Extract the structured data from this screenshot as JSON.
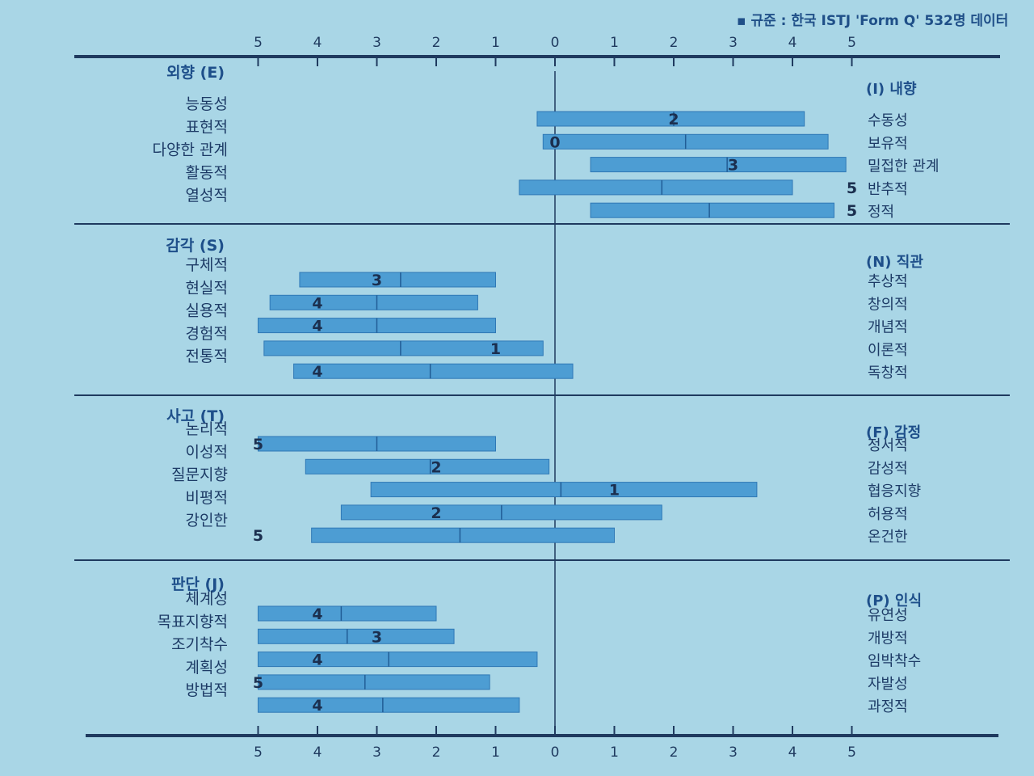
{
  "norm_note": "▪ 규준 : 한국 ISTJ 'Form Q' 532명 데이터",
  "chart_data": {
    "type": "bar",
    "axis_ticks_top": [
      "5",
      "4",
      "3",
      "2",
      "1",
      "0",
      "1",
      "2",
      "3",
      "4",
      "5"
    ],
    "axis_ticks_bottom": [
      "5",
      "4",
      "3",
      "2",
      "1",
      "0",
      "1",
      "2",
      "3",
      "4",
      "5"
    ],
    "xlim": [
      -5,
      5
    ],
    "scales": [
      {
        "left_header": "외향 (E)",
        "right_header": "(I) 내향",
        "facets": [
          {
            "left": "능동성",
            "right": "수동성",
            "range": [
              -0.3,
              4.2
            ],
            "median": 2.0,
            "score_label": "2",
            "score_pos": 2.0
          },
          {
            "left": "표현적",
            "right": "보유적",
            "range": [
              -0.2,
              4.6
            ],
            "median": 2.2,
            "score_label": "0",
            "score_pos": 0.0
          },
          {
            "left": "다양한 관계",
            "right": "밀접한 관계",
            "range": [
              0.6,
              4.9
            ],
            "median": 2.9,
            "score_label": "3",
            "score_pos": 3.0
          },
          {
            "left": "활동적",
            "right": "반추적",
            "range": [
              -0.6,
              4.0
            ],
            "median": 1.8,
            "score_label": "5",
            "score_pos": 5.0
          },
          {
            "left": "열성적",
            "right": "정적",
            "range": [
              0.6,
              4.7
            ],
            "median": 2.6,
            "score_label": "5",
            "score_pos": 5.0
          }
        ]
      },
      {
        "left_header": "감각 (S)",
        "right_header": "(N) 직관",
        "facets": [
          {
            "left": "구체적",
            "right": "추상적",
            "range": [
              -4.3,
              -1.0
            ],
            "median": -2.6,
            "score_label": "3",
            "score_pos": -3.0
          },
          {
            "left": "현실적",
            "right": "창의적",
            "range": [
              -4.8,
              -1.3
            ],
            "median": -3.0,
            "score_label": "4",
            "score_pos": -4.0
          },
          {
            "left": "실용적",
            "right": "개념적",
            "range": [
              -5.0,
              -1.0
            ],
            "median": -3.0,
            "score_label": "4",
            "score_pos": -4.0
          },
          {
            "left": "경험적",
            "right": "이론적",
            "range": [
              -4.9,
              -0.2
            ],
            "median": -2.6,
            "score_label": "1",
            "score_pos": -1.0
          },
          {
            "left": "전통적",
            "right": "독창적",
            "range": [
              -4.4,
              0.3
            ],
            "median": -2.1,
            "score_label": "4",
            "score_pos": -4.0
          }
        ]
      },
      {
        "left_header": "사고 (T)",
        "right_header": "(F) 감정",
        "facets": [
          {
            "left": "논리적",
            "right": "정서적",
            "range": [
              -5.0,
              -1.0
            ],
            "median": -3.0,
            "score_label": "5",
            "score_pos": -5.0
          },
          {
            "left": "이성적",
            "right": "감성적",
            "range": [
              -4.2,
              -0.1
            ],
            "median": -2.1,
            "score_label": "2",
            "score_pos": -2.0
          },
          {
            "left": "질문지향",
            "right": "협응지향",
            "range": [
              -3.1,
              3.4
            ],
            "median": 0.1,
            "score_label": "1",
            "score_pos": 1.0
          },
          {
            "left": "비평적",
            "right": "허용적",
            "range": [
              -3.6,
              1.8
            ],
            "median": -0.9,
            "score_label": "2",
            "score_pos": -2.0
          },
          {
            "left": "강인한",
            "right": "온건한",
            "range": [
              -4.1,
              1.0
            ],
            "median": -1.6,
            "score_label": "5",
            "score_pos": -5.0
          }
        ]
      },
      {
        "left_header": "판단 (J)",
        "right_header": "(P) 인식",
        "facets": [
          {
            "left": "체계성",
            "right": "유연성",
            "range": [
              -5.0,
              -2.0
            ],
            "median": -3.6,
            "score_label": "4",
            "score_pos": -4.0
          },
          {
            "left": "목표지향적",
            "right": "개방적",
            "range": [
              -5.0,
              -1.7
            ],
            "median": -3.5,
            "score_label": "3",
            "score_pos": -3.0
          },
          {
            "left": "조기착수",
            "right": "임박착수",
            "range": [
              -5.0,
              -0.3
            ],
            "median": -2.8,
            "score_label": "4",
            "score_pos": -4.0
          },
          {
            "left": "계획성",
            "right": "자발성",
            "range": [
              -5.0,
              -1.1
            ],
            "median": -3.2,
            "score_label": "5",
            "score_pos": -5.0
          },
          {
            "left": "방법적",
            "right": "과정적",
            "range": [
              -5.0,
              -0.6
            ],
            "median": -2.9,
            "score_label": "4",
            "score_pos": -4.0
          }
        ]
      }
    ]
  }
}
